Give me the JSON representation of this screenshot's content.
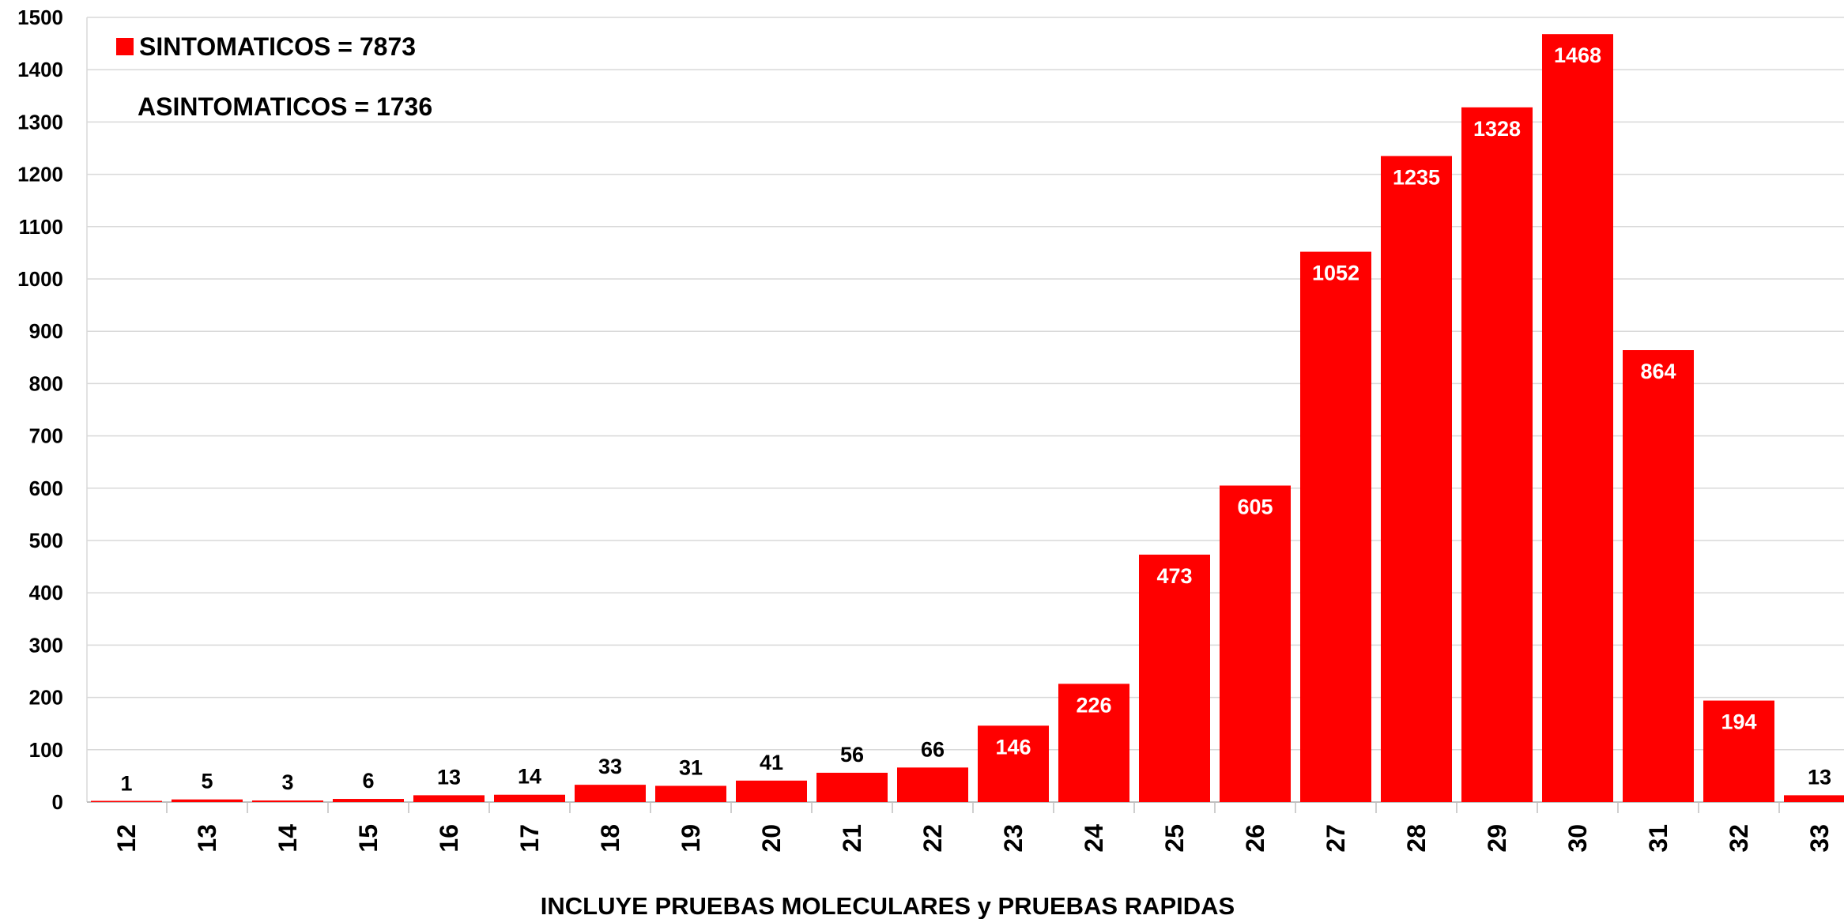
{
  "chart_data": {
    "type": "bar",
    "categories": [
      "12",
      "13",
      "14",
      "15",
      "16",
      "17",
      "18",
      "19",
      "20",
      "21",
      "22",
      "23",
      "24",
      "25",
      "26",
      "27",
      "28",
      "29",
      "30",
      "31",
      "32",
      "33"
    ],
    "series": [
      {
        "name": "SINTOMATICOS = 7873",
        "values": [
          1,
          5,
          3,
          6,
          13,
          14,
          33,
          31,
          41,
          56,
          66,
          146,
          226,
          473,
          605,
          1052,
          1235,
          1328,
          1468,
          864,
          194,
          13
        ],
        "color": "#ff0000"
      }
    ],
    "annotation": "ASINTOMATICOS = 1736",
    "xlabel": "INCLUYE PRUEBAS MOLECULARES y PRUEBAS RAPIDAS",
    "ylabel": "",
    "ylim": [
      0,
      1500
    ],
    "yticks": [
      0,
      100,
      200,
      300,
      400,
      500,
      600,
      700,
      800,
      900,
      1000,
      1100,
      1200,
      1300,
      1400,
      1500
    ],
    "grid": true,
    "legend_position": "top-left",
    "data_labels": true,
    "label_color_inside": "#ffffff",
    "label_color_outside": "#000000",
    "gridline_color": "#d9d9d9"
  }
}
